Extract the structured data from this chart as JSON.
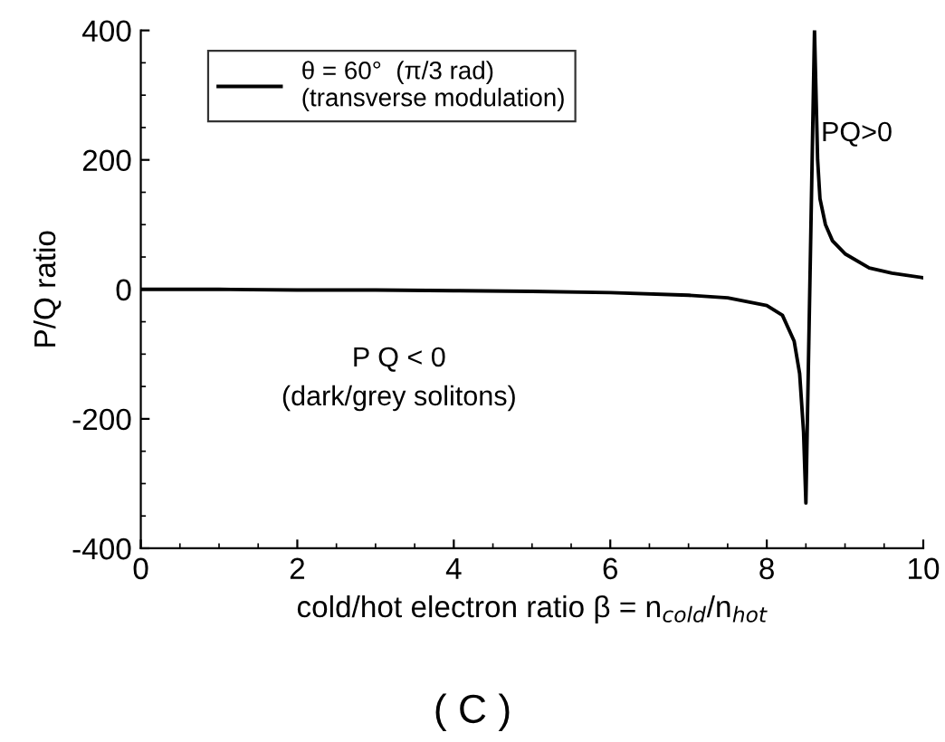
{
  "chart_data": {
    "type": "line",
    "xlabel": "cold/hot electron ratio β = n$_{cold}$/n$_{hot}$",
    "ylabel": "P/Q ratio",
    "xlim": [
      0,
      10
    ],
    "xticks": [
      0,
      2,
      4,
      6,
      8,
      10
    ],
    "ylim": [
      -400,
      400
    ],
    "yticks": [
      -400,
      -200,
      0,
      200,
      400
    ],
    "grid": false,
    "legend": "top left",
    "marker": "none",
    "line_style": "solid",
    "series": [
      {
        "name": "θ = 60°  (π/3 rad)\n(transverse modulation)",
        "color": "#000000",
        "x": [
          0,
          1,
          2,
          3,
          4,
          5,
          6,
          7,
          7.5,
          8,
          8.2,
          8.35,
          8.42,
          8.47,
          8.5,
          8.61,
          8.65,
          8.68,
          8.75,
          8.84,
          9,
          9.31,
          9.6,
          10
        ],
        "values": [
          0,
          0,
          -1,
          -1,
          -2,
          -3,
          -5,
          -9,
          -13,
          -25,
          -40,
          -80,
          -130,
          -220,
          -330,
          400,
          200,
          140,
          100,
          75,
          55,
          33,
          25,
          18
        ]
      }
    ],
    "annotations": [
      "PQ>0",
      "P Q < 0",
      "(dark/grey solitons)",
      "( C )"
    ]
  }
}
